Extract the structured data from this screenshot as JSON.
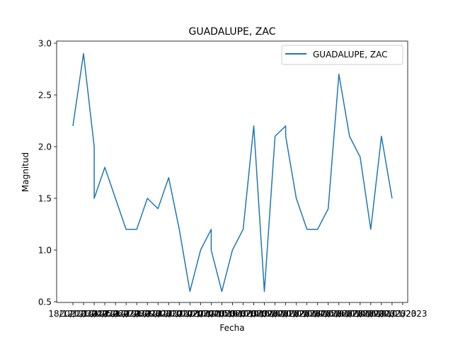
{
  "chart_data": {
    "type": "line",
    "title": "GUADALUPE, ZAC",
    "xlabel": "Fecha",
    "ylabel": "Magnitud",
    "ylim": [
      0.5,
      3.0
    ],
    "y_ticks": [
      "0.5",
      "1.0",
      "1.5",
      "2.0",
      "2.5",
      "3.0"
    ],
    "x_ticks": [
      "18/12/2022",
      "20/12/2022",
      "21/12/2022",
      "23/12/2022",
      "24/12/2022",
      "25/12/2022",
      "26/12/2022",
      "27/12/2022",
      "28/12/2022",
      "29/12/2022",
      "30/12/2022",
      "31/12/2022",
      "01/01/2023",
      "02/01/2023",
      "03/01/2023",
      "04/01/2023",
      "05/01/2023",
      "06/01/2023",
      "07/01/2023",
      "08/01/2023",
      "09/01/2023",
      "10/01/2023",
      "11/01/2023",
      "12/01/2023",
      "13/01/2023",
      "14/01/2023",
      "15/01/2023",
      "16/01/2023",
      "17/01/2023",
      "18/01/2023",
      "19/01/2023",
      "20/01/2023"
    ],
    "legend": "top-right",
    "grid": false,
    "series": [
      {
        "name": "GUADALUPE, ZAC",
        "color": "#1f77b4",
        "points": [
          [
            0,
            2.2
          ],
          [
            1,
            2.9
          ],
          [
            2,
            2.0
          ],
          [
            2,
            1.5
          ],
          [
            3,
            1.8
          ],
          [
            4,
            1.5
          ],
          [
            5,
            1.2
          ],
          [
            6,
            1.2
          ],
          [
            7,
            1.5
          ],
          [
            8,
            1.4
          ],
          [
            9,
            1.7
          ],
          [
            10,
            1.2
          ],
          [
            11,
            0.6
          ],
          [
            12,
            1.0
          ],
          [
            13,
            1.2
          ],
          [
            13,
            1.0
          ],
          [
            14,
            0.6
          ],
          [
            15,
            1.0
          ],
          [
            16,
            1.2
          ],
          [
            17,
            2.2
          ],
          [
            18,
            0.6
          ],
          [
            19,
            2.1
          ],
          [
            20,
            2.2
          ],
          [
            20,
            2.1
          ],
          [
            21,
            1.5
          ],
          [
            22,
            1.2
          ],
          [
            23,
            1.2
          ],
          [
            24,
            1.4
          ],
          [
            25,
            2.7
          ],
          [
            26,
            2.1
          ],
          [
            27,
            1.9
          ],
          [
            28,
            1.2
          ],
          [
            29,
            2.1
          ],
          [
            30,
            1.5
          ]
        ]
      }
    ]
  }
}
